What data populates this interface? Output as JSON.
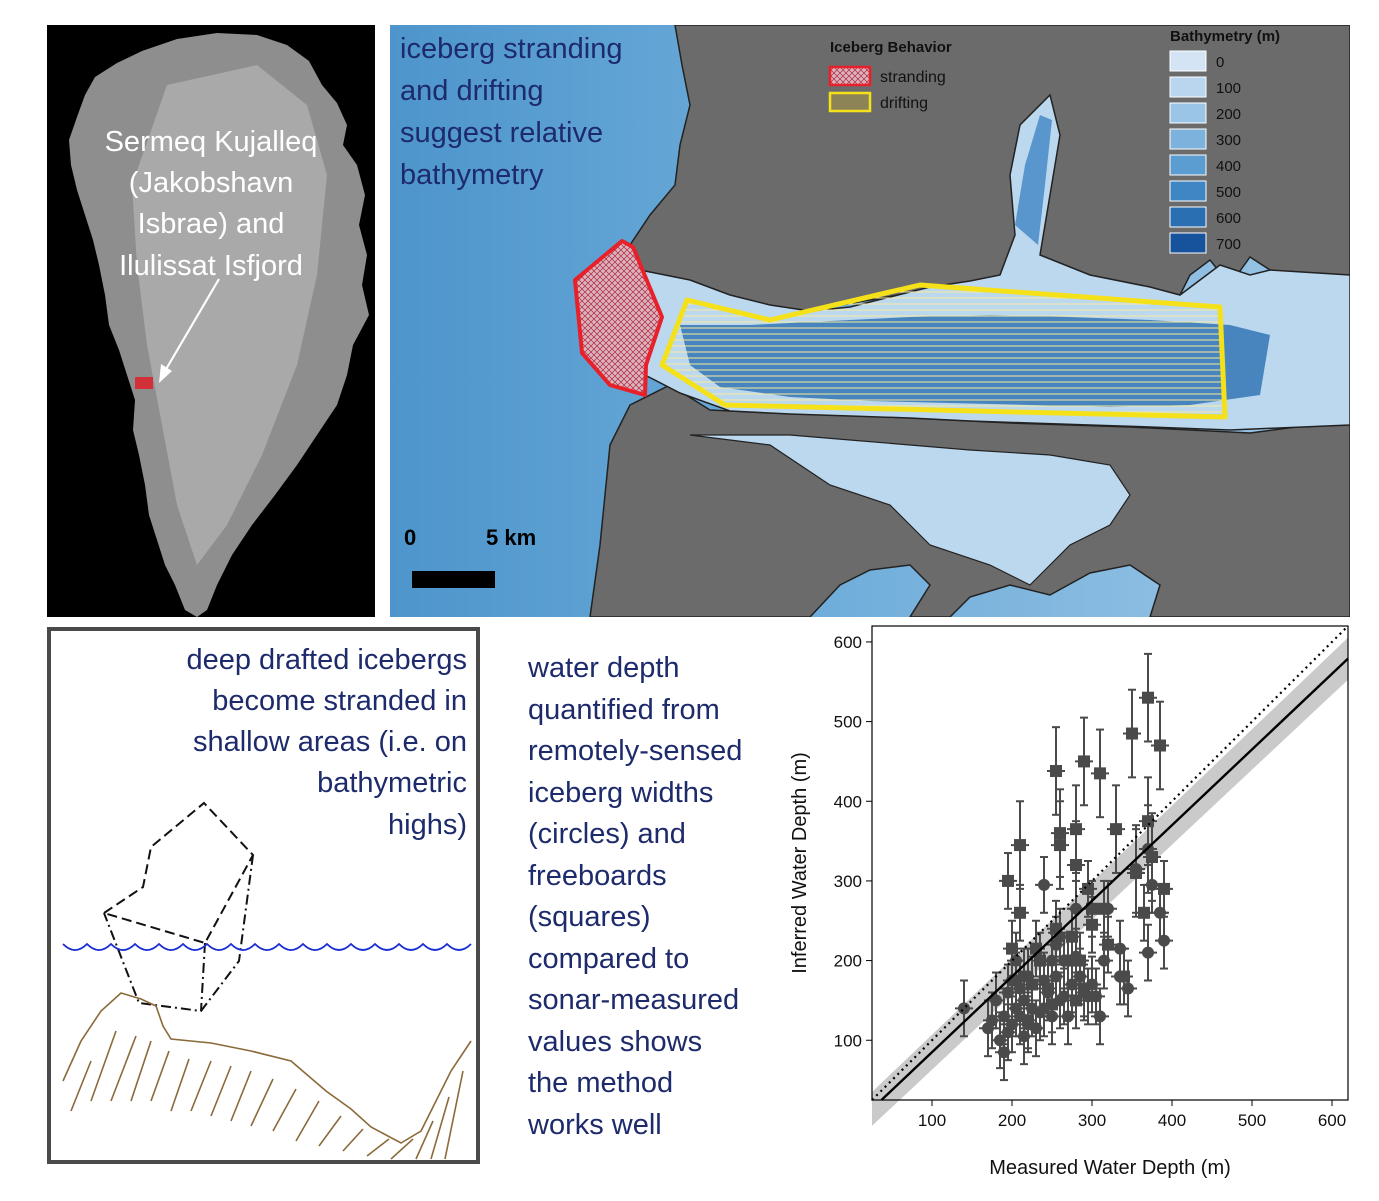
{
  "greenland": {
    "label_lines": [
      "Sermeq Kujalleq",
      "(Jakobshavn",
      "Isbrae) and",
      "Ilulissat Isfjord"
    ]
  },
  "bathy_map": {
    "title_lines": [
      "iceberg stranding",
      "and drifting",
      "suggest relative",
      "bathymetry"
    ],
    "behavior_legend": {
      "title": "Iceberg Behavior",
      "items": [
        {
          "label": "stranding",
          "color": "#e8202a"
        },
        {
          "label": "drifting",
          "color": "#f5e11a"
        }
      ]
    },
    "bathymetry_legend": {
      "title": "Bathymetry (m)",
      "items": [
        {
          "label": "0",
          "color": "#d4e4f4"
        },
        {
          "label": "100",
          "color": "#b9d6ee"
        },
        {
          "label": "200",
          "color": "#9bc5e6"
        },
        {
          "label": "300",
          "color": "#7cb2dc"
        },
        {
          "label": "400",
          "color": "#5c9dd1"
        },
        {
          "label": "500",
          "color": "#3f86c4"
        },
        {
          "label": "600",
          "color": "#2a6fb2"
        },
        {
          "label": "700",
          "color": "#17539c"
        }
      ]
    },
    "scale_bar": {
      "start_label": "0",
      "end_label": "5 km"
    }
  },
  "schematic": {
    "text_lines": [
      "deep drafted icebergs",
      "become stranded in",
      "shallow areas (i.e. on",
      "bathymetric",
      "highs)"
    ]
  },
  "method": {
    "text_lines": [
      "water depth",
      "quantified from",
      "remotely-sensed",
      "iceberg widths",
      "(circles) and",
      "freeboards",
      "(squares)",
      "compared to",
      "sonar-measured",
      "values shows",
      "the method",
      "works well"
    ]
  },
  "chart_data": {
    "type": "scatter",
    "title": "",
    "xlabel": "Measured Water Depth (m)",
    "ylabel": "Inferred Water Depth (m)",
    "xlim": [
      25,
      620
    ],
    "ylim": [
      25,
      620
    ],
    "xticks": [
      100,
      200,
      300,
      400,
      500,
      600
    ],
    "yticks": [
      100,
      200,
      300,
      400,
      500,
      600
    ],
    "reference_line": {
      "style": "dotted",
      "slope": 1,
      "intercept": 0
    },
    "fit_line": {
      "style": "solid",
      "slope": 0.95,
      "intercept": -10
    },
    "series": [
      {
        "marker": "circle",
        "points": [
          [
            140,
            140
          ],
          [
            170,
            115
          ],
          [
            175,
            125
          ],
          [
            180,
            150
          ],
          [
            185,
            100
          ],
          [
            190,
            85
          ],
          [
            190,
            130
          ],
          [
            195,
            110
          ],
          [
            195,
            160
          ],
          [
            200,
            120
          ],
          [
            200,
            175
          ],
          [
            205,
            140
          ],
          [
            205,
            200
          ],
          [
            210,
            130
          ],
          [
            210,
            165
          ],
          [
            215,
            105
          ],
          [
            215,
            150
          ],
          [
            220,
            120
          ],
          [
            220,
            180
          ],
          [
            225,
            140
          ],
          [
            230,
            115
          ],
          [
            240,
            140
          ],
          [
            240,
            175
          ],
          [
            245,
            160
          ],
          [
            250,
            130
          ],
          [
            250,
            200
          ],
          [
            255,
            180
          ],
          [
            260,
            150
          ],
          [
            260,
            230
          ],
          [
            265,
            200
          ],
          [
            270,
            130
          ],
          [
            275,
            170
          ],
          [
            280,
            205
          ],
          [
            285,
            180
          ],
          [
            290,
            160
          ],
          [
            295,
            155
          ],
          [
            300,
            170
          ],
          [
            310,
            130
          ],
          [
            315,
            200
          ],
          [
            320,
            265
          ],
          [
            335,
            180
          ],
          [
            335,
            215
          ],
          [
            345,
            165
          ],
          [
            355,
            315
          ],
          [
            370,
            210
          ],
          [
            370,
            340
          ],
          [
            375,
            295
          ],
          [
            385,
            260
          ],
          [
            390,
            225
          ],
          [
            240,
            295
          ],
          [
            255,
            220
          ],
          [
            280,
            265
          ],
          [
            265,
            155
          ],
          [
            235,
            135
          ],
          [
            305,
            155
          ]
        ]
      },
      {
        "marker": "square",
        "points": [
          [
            195,
            300
          ],
          [
            200,
            215
          ],
          [
            205,
            175
          ],
          [
            210,
            260
          ],
          [
            210,
            345
          ],
          [
            215,
            180
          ],
          [
            220,
            125
          ],
          [
            225,
            170
          ],
          [
            230,
            215
          ],
          [
            245,
            165
          ],
          [
            250,
            145
          ],
          [
            255,
            240
          ],
          [
            255,
            438
          ],
          [
            260,
            360
          ],
          [
            260,
            345
          ],
          [
            270,
            200
          ],
          [
            275,
            230
          ],
          [
            280,
            365
          ],
          [
            280,
            320
          ],
          [
            280,
            150
          ],
          [
            285,
            200
          ],
          [
            290,
            450
          ],
          [
            290,
            165
          ],
          [
            295,
            290
          ],
          [
            300,
            265
          ],
          [
            310,
            435
          ],
          [
            315,
            265
          ],
          [
            320,
            220
          ],
          [
            330,
            365
          ],
          [
            340,
            180
          ],
          [
            350,
            485
          ],
          [
            355,
            310
          ],
          [
            365,
            260
          ],
          [
            370,
            530
          ],
          [
            370,
            375
          ],
          [
            375,
            330
          ],
          [
            385,
            470
          ],
          [
            390,
            290
          ],
          [
            235,
            200
          ],
          [
            300,
            245
          ]
        ]
      }
    ]
  }
}
